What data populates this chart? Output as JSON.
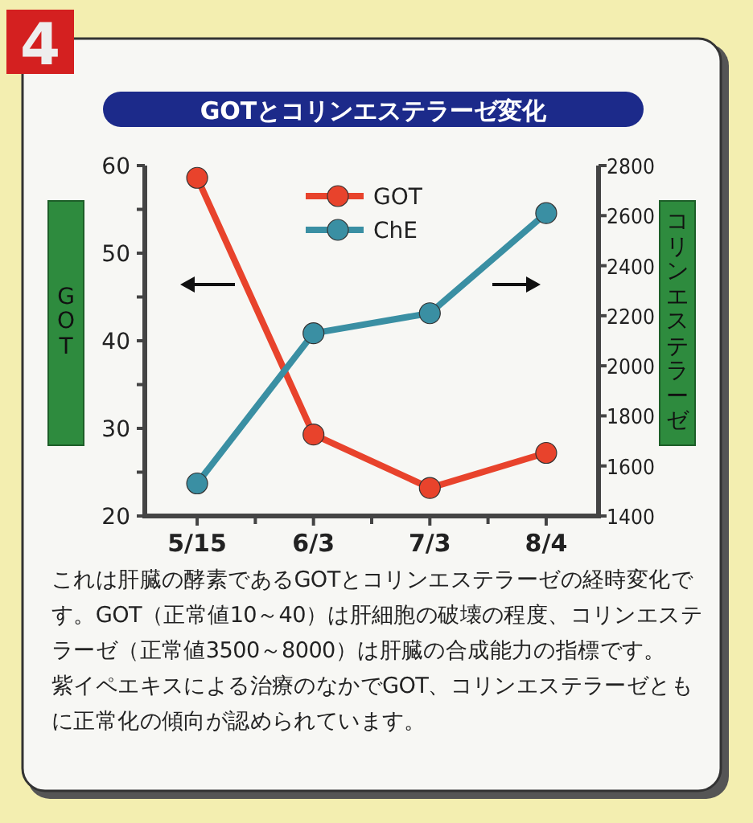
{
  "chart_data": {
    "type": "line",
    "title": "GOTとコリンエステラーゼ変化",
    "ylabel": "GOT",
    "y2label": "コリンエステラーゼ",
    "categories": [
      "5/15",
      "6/3",
      "7/3",
      "8/4"
    ],
    "series": [
      {
        "name": "GOT",
        "color": "#e8432c",
        "values": [
          58.6,
          29.3,
          23.2,
          27.2
        ]
      },
      {
        "name": "ChE",
        "color": "#3a8fa3",
        "values": [
          1530,
          2130,
          2210,
          2610
        ],
        "axis": "y2"
      }
    ],
    "ylim": [
      20,
      60
    ],
    "yticks": [
      20,
      {
        "value": 25,
        "label": null
      },
      30,
      {
        "value": 35,
        "label": null
      },
      40,
      {
        "value": 45,
        "label": null
      },
      50,
      {
        "value": 55,
        "label": null
      },
      60
    ],
    "y2lim": [
      1400,
      2800
    ],
    "y2ticks": [
      1400,
      1600,
      1800,
      2000,
      2200,
      2400,
      2600,
      2800
    ],
    "legend": "top",
    "marker": "circle",
    "line_style": "solid",
    "grid": false,
    "annotations": [
      "4",
      "これは肝臓の酵素であるGOTとコリンエステラーゼの経時変化です。GOT（正常値10～40）は肝細胞の破壊の程度、コリンエステラーゼ（正常値3500～8000）は肝臓の合成能力の指標です。",
      "紫イペエキスによる治療のなかでGOT、コリンエステラーゼともに正常化の傾向が認められています。"
    ]
  }
}
